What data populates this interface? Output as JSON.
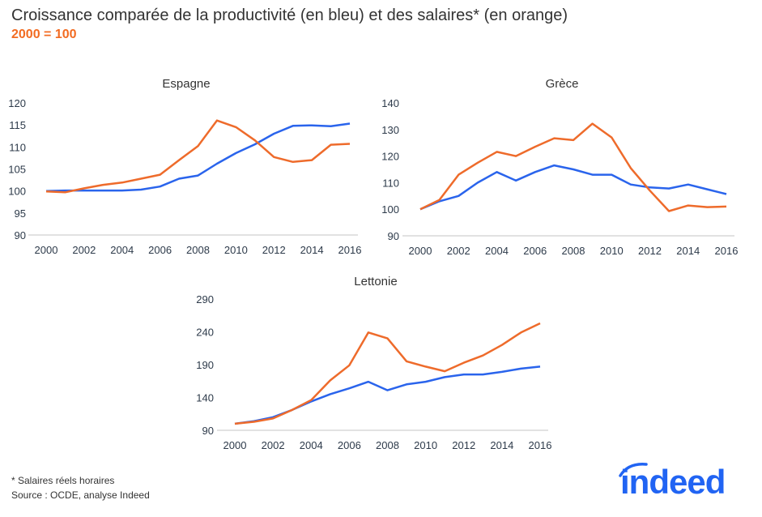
{
  "title": "Croissance comparée de la productivité (en bleu) et des salaires* (en orange)",
  "subtitle": "2000 = 100",
  "footnote": "* Salaires réels horaires",
  "source": "Source : OCDE, analyse Indeed",
  "logo_text": "indeed",
  "colors": {
    "productivity": "#2a64ec",
    "wages": "#ee6b2b",
    "accent": "#f26b21",
    "logo": "#2164f3"
  },
  "chart_data": [
    {
      "type": "line",
      "title": "Espagne",
      "x": [
        2000,
        2001,
        2002,
        2003,
        2004,
        2005,
        2006,
        2007,
        2008,
        2009,
        2010,
        2011,
        2012,
        2013,
        2014,
        2015,
        2016
      ],
      "x_ticks": [
        "2000",
        "2002",
        "2004",
        "2006",
        "2008",
        "2010",
        "2012",
        "2014",
        "2016"
      ],
      "y_ticks": [
        "90",
        "95",
        "100",
        "105",
        "110",
        "115",
        "120"
      ],
      "ylim": [
        90,
        120
      ],
      "series": [
        {
          "color": "#2a64ec",
          "values": [
            100,
            100.1,
            100.1,
            100.1,
            100.1,
            100.3,
            101,
            102.8,
            103.5,
            106.2,
            108.6,
            110.6,
            113,
            114.8,
            114.9,
            114.7,
            115.3
          ]
        },
        {
          "color": "#ee6b2b",
          "values": [
            99.9,
            99.7,
            100.6,
            101.4,
            101.9,
            102.8,
            103.7,
            107,
            110.2,
            116,
            114.5,
            111.5,
            107.7,
            106.6,
            107,
            110.5,
            110.7
          ]
        }
      ]
    },
    {
      "type": "line",
      "title": "Grèce",
      "x": [
        2000,
        2001,
        2002,
        2003,
        2004,
        2005,
        2006,
        2007,
        2008,
        2009,
        2010,
        2011,
        2012,
        2013,
        2014,
        2015,
        2016
      ],
      "x_ticks": [
        "2000",
        "2002",
        "2004",
        "2006",
        "2008",
        "2010",
        "2012",
        "2014",
        "2016"
      ],
      "y_ticks": [
        "90",
        "100",
        "110",
        "120",
        "130",
        "140"
      ],
      "ylim": [
        90,
        140
      ],
      "series": [
        {
          "color": "#2a64ec",
          "values": [
            100,
            103,
            105,
            110,
            114,
            110.8,
            114,
            116.5,
            115,
            113,
            113,
            109.3,
            108.2,
            107.8,
            109.3,
            107.5,
            105.7
          ]
        },
        {
          "color": "#ee6b2b",
          "values": [
            100,
            103.5,
            113,
            117.5,
            121.6,
            120,
            123.5,
            126.7,
            126,
            132.2,
            127,
            115.5,
            107,
            99.3,
            101.4,
            100.8,
            101
          ]
        }
      ]
    },
    {
      "type": "line",
      "title": "Lettonie",
      "x": [
        2000,
        2001,
        2002,
        2003,
        2004,
        2005,
        2006,
        2007,
        2008,
        2009,
        2010,
        2011,
        2012,
        2013,
        2014,
        2015,
        2016
      ],
      "x_ticks": [
        "2000",
        "2002",
        "2004",
        "2006",
        "2008",
        "2010",
        "2012",
        "2014",
        "2016"
      ],
      "y_ticks": [
        "90",
        "140",
        "190",
        "240",
        "290"
      ],
      "ylim": [
        90,
        290
      ],
      "series": [
        {
          "color": "#2a64ec",
          "values": [
            100,
            104,
            110,
            121,
            134,
            145,
            154,
            164,
            151,
            160,
            164,
            171,
            175,
            175,
            179,
            184,
            187
          ]
        },
        {
          "color": "#ee6b2b",
          "values": [
            100,
            103,
            108,
            121,
            136,
            166,
            189,
            239,
            230,
            195,
            187,
            180,
            193,
            204,
            220,
            239,
            253
          ]
        }
      ]
    }
  ]
}
